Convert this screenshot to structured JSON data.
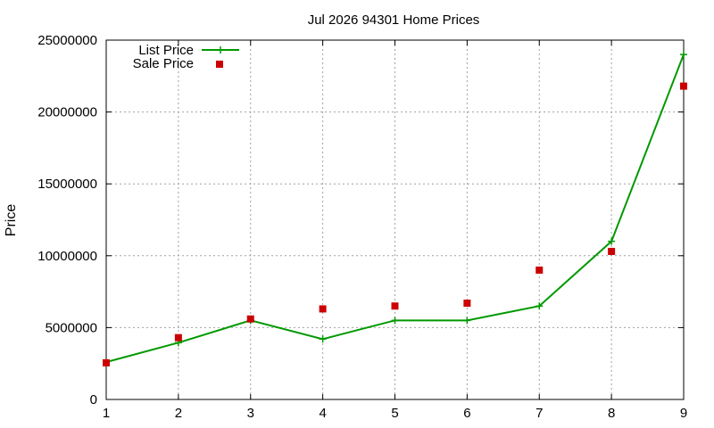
{
  "chart_data": {
    "type": "line",
    "title": "Jul 2026 94301 Home Prices",
    "xlabel": "",
    "ylabel": "Price",
    "x": [
      1,
      2,
      3,
      4,
      5,
      6,
      7,
      8,
      9
    ],
    "xlim": [
      1,
      9
    ],
    "ylim": [
      0,
      25000000
    ],
    "x_ticks": [
      "1",
      "2",
      "3",
      "4",
      "5",
      "6",
      "7",
      "8",
      "9"
    ],
    "y_ticks": [
      "0",
      "5000000",
      "10000000",
      "15000000",
      "20000000",
      "25000000"
    ],
    "grid": true,
    "legend_position": "top-left",
    "series": [
      {
        "name": "List Price",
        "kind": "line-with-markers",
        "marker": "plus",
        "color": "#009900",
        "values": [
          2600000,
          3950000,
          5500000,
          4200000,
          5500000,
          5500000,
          6500000,
          11000000,
          24000000
        ]
      },
      {
        "name": "Sale Price",
        "kind": "scatter",
        "marker": "square",
        "color": "#cc0000",
        "values": [
          2550000,
          4300000,
          5600000,
          6300000,
          6500000,
          6700000,
          9000000,
          10300000,
          21800000
        ]
      }
    ]
  }
}
